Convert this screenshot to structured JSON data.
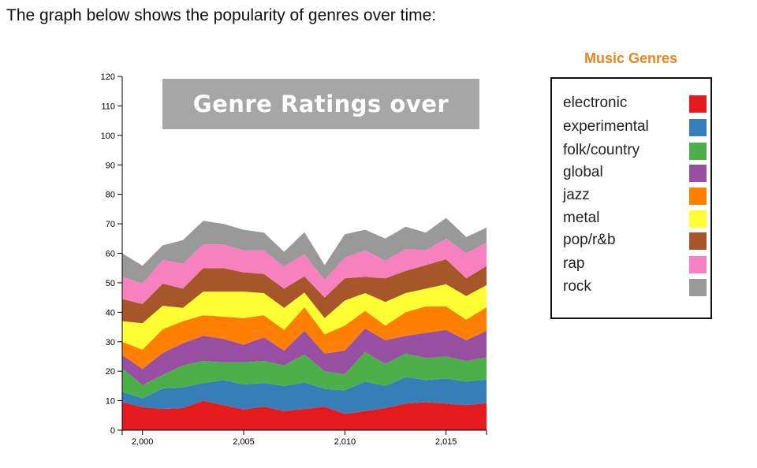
{
  "page": {
    "heading": "The graph below shows the popularity of genres over time:"
  },
  "colors": {
    "legend_title": "#f0821e",
    "title_bg": "#a6a6a6"
  },
  "chart_data": {
    "type": "area",
    "title": "Genre Ratings over time",
    "xlabel": "",
    "ylabel": "",
    "xlim": [
      1999,
      2017
    ],
    "ylim": [
      0,
      120
    ],
    "stacked": true,
    "y_ticks": [
      0,
      10,
      20,
      30,
      40,
      50,
      60,
      70,
      80,
      90,
      100,
      110,
      120
    ],
    "x_ticks": [
      2000,
      2005,
      2010,
      2015
    ],
    "x_tick_labels": [
      "2,000",
      "2,005",
      "2,010",
      "2,015"
    ],
    "legend": {
      "title": "Music Genres",
      "placement": "right"
    },
    "x": [
      1999,
      2000,
      2001,
      2002,
      2003,
      2004,
      2005,
      2006,
      2007,
      2008,
      2009,
      2010,
      2011,
      2012,
      2013,
      2014,
      2015,
      2016,
      2017
    ],
    "series": [
      {
        "name": "electronic",
        "color": "#e41a1c",
        "values": [
          9.5,
          7.8,
          7.2,
          7.5,
          10,
          8.5,
          7,
          8,
          6.5,
          7.2,
          8,
          5.5,
          6.5,
          7.5,
          9,
          9.5,
          9,
          8.5,
          9.2
        ]
      },
      {
        "name": "experimental",
        "color": "#377eb8",
        "values": [
          3.5,
          3,
          7,
          7,
          6,
          8.5,
          8.5,
          8,
          8.5,
          9,
          6,
          8,
          10,
          7.5,
          9,
          7.5,
          8.5,
          8,
          8
        ]
      },
      {
        "name": "folk/country",
        "color": "#4daf4a",
        "values": [
          8,
          4.5,
          4.5,
          7.5,
          7.5,
          6,
          7.5,
          7.5,
          7,
          9.5,
          6,
          5.5,
          10,
          7.5,
          8,
          7.5,
          7.5,
          7,
          7.5
        ]
      },
      {
        "name": "global",
        "color": "#984ea3",
        "values": [
          4.5,
          5.5,
          7.5,
          7.5,
          8.5,
          8,
          6,
          8,
          5,
          8,
          6,
          8,
          8,
          8,
          6,
          8.5,
          9,
          7,
          9
        ]
      },
      {
        "name": "jazz",
        "color": "#ff7f00",
        "values": [
          4.5,
          6.5,
          8,
          7.5,
          7,
          7.5,
          9,
          7.5,
          7,
          8,
          6.5,
          8.5,
          6,
          5,
          8,
          9,
          8,
          7,
          8
        ]
      },
      {
        "name": "metal",
        "color": "#ffff33",
        "values": [
          7,
          9,
          8,
          4.5,
          8,
          8.5,
          9,
          7.5,
          7.5,
          5,
          5.5,
          8.5,
          6,
          8,
          6.5,
          6,
          7.5,
          8,
          7.5
        ]
      },
      {
        "name": "pop/r&b",
        "color": "#a65628",
        "values": [
          7.5,
          6.5,
          7.5,
          6.5,
          8,
          8,
          6.5,
          6.5,
          6.5,
          5.5,
          7,
          7.5,
          5.5,
          8,
          7.5,
          8,
          8.5,
          6,
          6.5
        ]
      },
      {
        "name": "rap",
        "color": "#f781bf",
        "values": [
          7.5,
          7,
          8,
          8.5,
          8,
          8,
          7.5,
          8,
          7.5,
          7.5,
          6,
          7,
          9,
          6,
          7.5,
          5,
          7,
          8.5,
          8
        ]
      },
      {
        "name": "rock",
        "color": "#999999",
        "values": [
          8,
          6,
          5,
          8,
          8,
          7,
          7,
          6,
          5,
          7.5,
          5,
          8,
          7,
          7.5,
          7.5,
          6,
          7,
          5.5,
          5
        ]
      }
    ]
  }
}
